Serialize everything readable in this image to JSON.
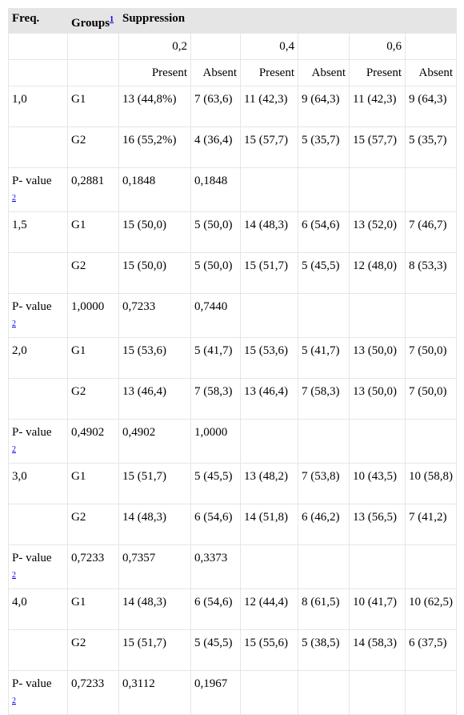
{
  "header": {
    "freq": "Freq.",
    "groups": "Groups",
    "groups_ref": "1",
    "suppression": "Suppression"
  },
  "levels": [
    "0,2",
    "0,4",
    "0,6"
  ],
  "subheaders": [
    "Present",
    "Absent",
    "Present",
    "Absent",
    "Present",
    "Absent"
  ],
  "pvalue_label": "P- value",
  "pvalue_ref": "2",
  "blocks": [
    {
      "freq": "1,0",
      "rows": [
        {
          "group": "G1",
          "cells": [
            "13 (44,8%)",
            "7 (63,6)",
            "11 (42,3)",
            "9 (64,3)",
            "11 (42,3)",
            "9 (64,3)"
          ]
        },
        {
          "group": "G2",
          "cells": [
            "16 (55,2%)",
            "4 (36,4)",
            "15 (57,7)",
            "5 (35,7)",
            "15 (57,7)",
            "5 (35,7)"
          ]
        }
      ],
      "pvalues": [
        "0,2881",
        "0,1848",
        "0,1848"
      ]
    },
    {
      "freq": "1,5",
      "rows": [
        {
          "group": "G1",
          "cells": [
            "15 (50,0)",
            "5 (50,0)",
            "14 (48,3)",
            "6 (54,6)",
            "13 (52,0)",
            "7 (46,7)"
          ]
        },
        {
          "group": "G2",
          "cells": [
            "15 (50,0)",
            "5 (50,0)",
            "15 (51,7)",
            "5 (45,5)",
            "12 (48,0)",
            "8 (53,3)"
          ]
        }
      ],
      "pvalues": [
        "1,0000",
        "0,7233",
        "0,7440"
      ]
    },
    {
      "freq": "2,0",
      "rows": [
        {
          "group": "G1",
          "cells": [
            "15 (53,6)",
            "5 (41,7)",
            "15 (53,6)",
            "5 (41,7)",
            "13 (50,0)",
            "7 (50,0)"
          ]
        },
        {
          "group": "G2",
          "cells": [
            "13 (46,4)",
            "7 (58,3)",
            "13 (46,4)",
            "7 (58,3)",
            "13 (50,0)",
            "7 (50,0)"
          ]
        }
      ],
      "pvalues": [
        "0,4902",
        "0,4902",
        "1,0000"
      ]
    },
    {
      "freq": "3,0",
      "rows": [
        {
          "group": "G1",
          "cells": [
            "15 (51,7)",
            "5 (45,5)",
            "13 (48,2)",
            "7 (53,8)",
            "10 (43,5)",
            "10 (58,8)"
          ]
        },
        {
          "group": "G2",
          "cells": [
            "14 (48,3)",
            "6 (54,6)",
            "14 (51,8)",
            "6 (46,2)",
            "13 (56,5)",
            "7 (41,2)"
          ]
        }
      ],
      "pvalues": [
        "0,7233",
        "0,7357",
        "0,3373"
      ]
    },
    {
      "freq": "4,0",
      "rows": [
        {
          "group": "G1",
          "cells": [
            "14 (48,3)",
            "6 (54,6)",
            "12 (44,4)",
            "8 (61,5)",
            "10 (41,7)",
            "10 (62,5)"
          ]
        },
        {
          "group": "G2",
          "cells": [
            "15 (51,7)",
            "5 (45,5)",
            "15 (55,6)",
            "5 (38,5)",
            "14 (58,3)",
            "6 (37,5)"
          ]
        }
      ],
      "pvalues": [
        "0,7233",
        "0,3112",
        "0,1967"
      ]
    }
  ]
}
